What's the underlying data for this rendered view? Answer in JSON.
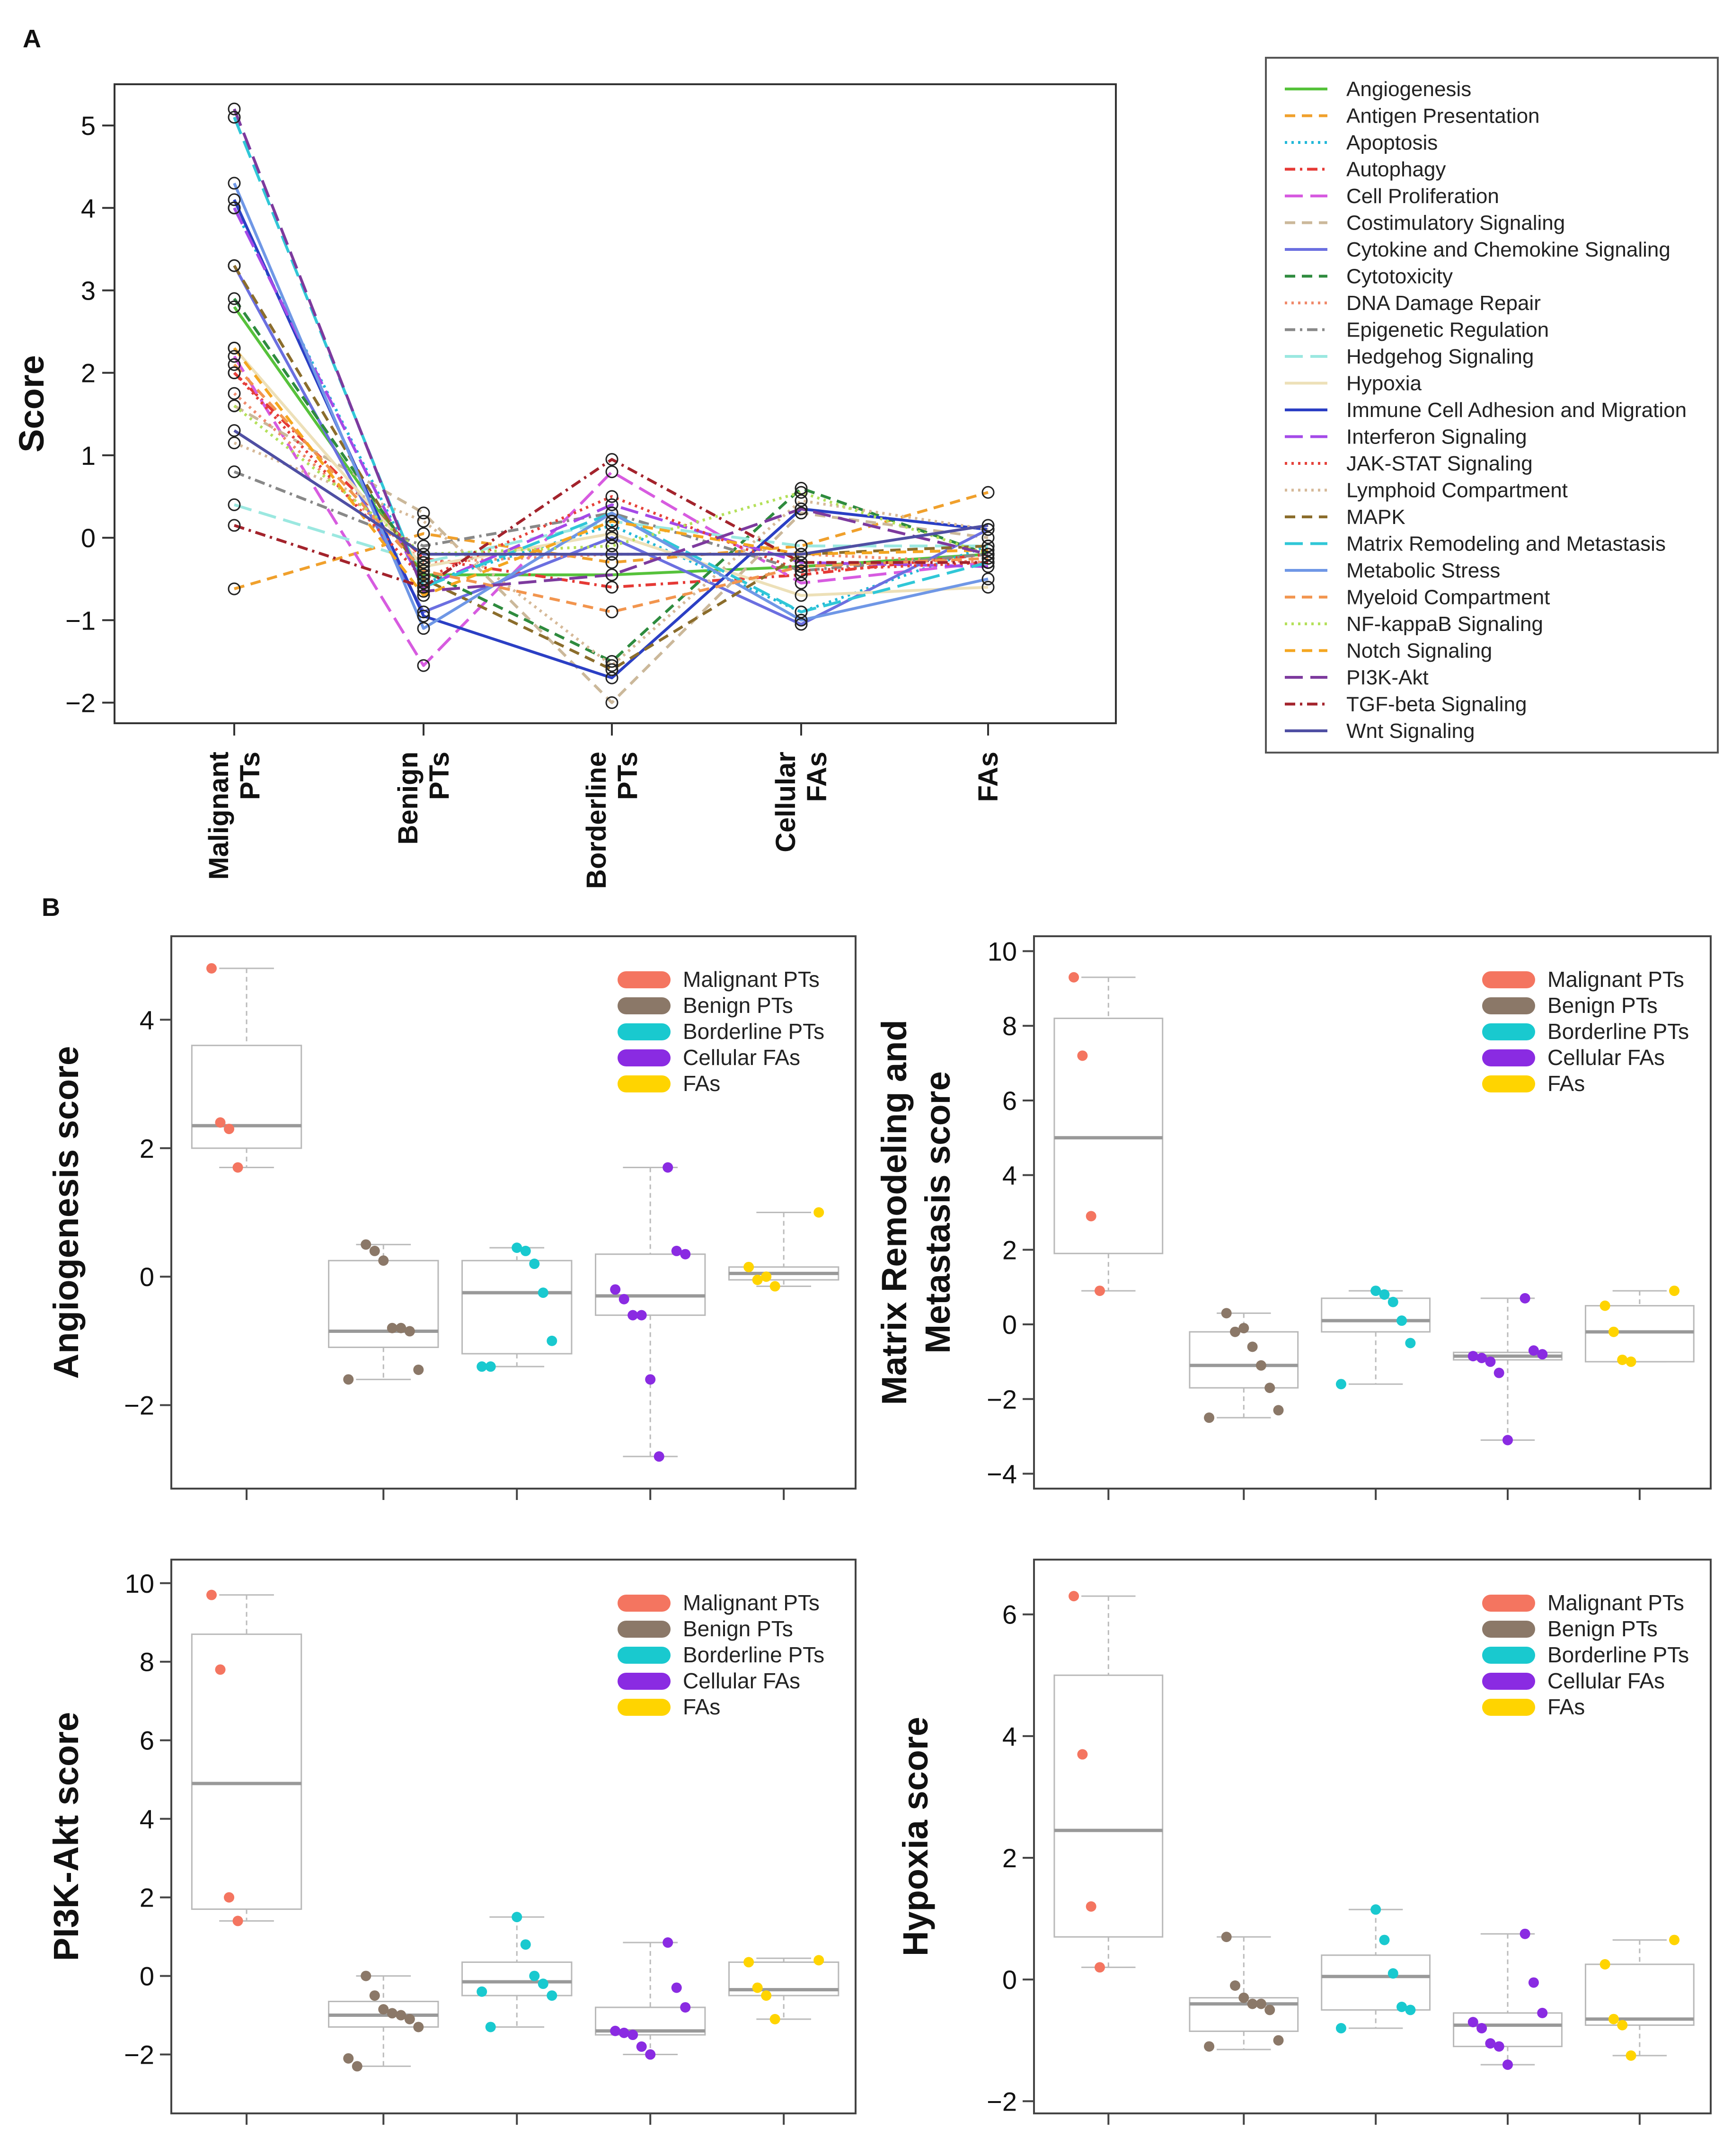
{
  "panel_labels": {
    "a": "A",
    "b": "B"
  },
  "colors": {
    "Malignant PTs": "#f47560",
    "Benign PTs": "#8b7868",
    "Borderline PTs": "#19c9cf",
    "Cellular FAs": "#8a2be2",
    "FAs": "#ffd400"
  },
  "chart_data": [
    {
      "id": "A",
      "type": "line",
      "title": "",
      "xlabel": "",
      "ylabel": "Score",
      "ylim": [
        -2.25,
        5.5
      ],
      "yticks": [
        "5",
        "4",
        "3",
        "2",
        "1",
        "0",
        "−1",
        "−2"
      ],
      "ytick_values": [
        5,
        4,
        3,
        2,
        1,
        0,
        -1,
        -2
      ],
      "categories": [
        [
          "Malignant",
          "PTs"
        ],
        [
          "Benign",
          "PTs"
        ],
        [
          "Borderline",
          "PTs"
        ],
        [
          "Cellular",
          "FAs"
        ],
        [
          "FAs"
        ]
      ],
      "series": [
        {
          "name": "Angiogenesis",
          "color": "#56c23b",
          "dash": "solid",
          "values": [
            2.8,
            -0.45,
            -0.45,
            -0.35,
            -0.2
          ]
        },
        {
          "name": "Antigen Presentation",
          "color": "#f0a02c",
          "dash": "dashed",
          "values": [
            -0.62,
            0.05,
            -0.3,
            -0.1,
            0.55
          ]
        },
        {
          "name": "Apoptosis",
          "color": "#22b8d8",
          "dash": "dotted",
          "values": [
            4.0,
            -0.55,
            0.15,
            -0.9,
            -0.1
          ]
        },
        {
          "name": "Autophagy",
          "color": "#e53935",
          "dash": "dashdot",
          "values": [
            2.0,
            -0.25,
            -0.6,
            -0.45,
            -0.2
          ]
        },
        {
          "name": "Cell Proliferation",
          "color": "#d75be0",
          "dash": "longdash",
          "values": [
            2.2,
            -1.55,
            0.8,
            -0.55,
            -0.3
          ]
        },
        {
          "name": "Costimulatory Signaling",
          "color": "#cbb89a",
          "dash": "dashed",
          "values": [
            1.6,
            0.3,
            -2.0,
            0.3,
            0.0
          ]
        },
        {
          "name": "Cytokine and Chemokine Signaling",
          "color": "#6b6fe0",
          "dash": "solid",
          "values": [
            3.3,
            -0.9,
            0.0,
            -1.05,
            0.1
          ]
        },
        {
          "name": "Cytotoxicity",
          "color": "#2e8b3e",
          "dash": "dashed",
          "values": [
            2.9,
            -0.4,
            -1.5,
            0.6,
            -0.2
          ]
        },
        {
          "name": "DNA Damage Repair",
          "color": "#f08a6c",
          "dash": "dotted",
          "values": [
            1.75,
            -0.3,
            -0.2,
            -0.2,
            -0.3
          ]
        },
        {
          "name": "Epigenetic Regulation",
          "color": "#888888",
          "dash": "dashdot",
          "values": [
            0.8,
            -0.1,
            0.3,
            -0.4,
            -0.2
          ]
        },
        {
          "name": "Hedgehog Signaling",
          "color": "#9be8e0",
          "dash": "longdash",
          "values": [
            0.4,
            -0.3,
            0.2,
            -0.1,
            -0.1
          ]
        },
        {
          "name": "Hypoxia",
          "color": "#ede0b8",
          "dash": "solid",
          "values": [
            2.3,
            -0.35,
            0.05,
            -0.7,
            -0.6
          ]
        },
        {
          "name": "Immune Cell Adhesion and Migration",
          "color": "#2b3fc4",
          "dash": "solid",
          "values": [
            4.1,
            -0.95,
            -1.7,
            0.35,
            0.1
          ]
        },
        {
          "name": "Interferon Signaling",
          "color": "#a44ae8",
          "dash": "longdash",
          "values": [
            4.0,
            -0.6,
            0.4,
            -0.3,
            -0.35
          ]
        },
        {
          "name": "JAK-STAT Signaling",
          "color": "#e5413a",
          "dash": "dotted",
          "values": [
            2.0,
            -0.5,
            0.5,
            -0.4,
            -0.3
          ]
        },
        {
          "name": "Lymphoid Compartment",
          "color": "#d6b998",
          "dash": "dotted",
          "values": [
            1.15,
            0.2,
            -1.55,
            0.45,
            0.1
          ]
        },
        {
          "name": "MAPK",
          "color": "#8b6d2c",
          "dash": "dashed",
          "values": [
            3.3,
            -0.5,
            -1.6,
            -0.2,
            -0.1
          ]
        },
        {
          "name": "Matrix Remodeling and Metastasis",
          "color": "#30c7d7",
          "dash": "longdash",
          "values": [
            5.1,
            -0.6,
            0.3,
            -0.9,
            -0.3
          ]
        },
        {
          "name": "Metabolic Stress",
          "color": "#6f97e6",
          "dash": "solid",
          "values": [
            4.3,
            -1.1,
            0.3,
            -1.0,
            -0.5
          ]
        },
        {
          "name": "Myeloid Compartment",
          "color": "#f2954e",
          "dash": "dashed",
          "values": [
            2.1,
            -0.4,
            -0.9,
            -0.35,
            -0.25
          ]
        },
        {
          "name": "NF-kappaB Signaling",
          "color": "#b4e05a",
          "dash": "dotted",
          "values": [
            1.6,
            -0.2,
            -0.1,
            0.55,
            -0.2
          ]
        },
        {
          "name": "Notch Signaling",
          "color": "#f4a620",
          "dash": "dashed",
          "values": [
            2.3,
            -0.7,
            0.2,
            -0.2,
            -0.15
          ]
        },
        {
          "name": "PI3K-Akt",
          "color": "#7d3a9e",
          "dash": "longdash",
          "values": [
            5.2,
            -0.65,
            -0.45,
            0.35,
            -0.2
          ]
        },
        {
          "name": "TGF-beta Signaling",
          "color": "#a3232c",
          "dash": "dashdot",
          "values": [
            0.15,
            -0.6,
            0.95,
            -0.3,
            -0.3
          ]
        },
        {
          "name": "Wnt Signaling",
          "color": "#4f4fa3",
          "dash": "solid",
          "values": [
            1.3,
            -0.2,
            -0.2,
            -0.2,
            0.15
          ]
        }
      ]
    },
    {
      "id": "B1",
      "type": "box",
      "ylabel": "Angiogenesis score",
      "ylim": [
        -3.3,
        5.3
      ],
      "yticks": [
        "4",
        "2",
        "0",
        "−2"
      ],
      "ytick_values": [
        4,
        2,
        0,
        -2
      ],
      "legend": [
        "Malignant PTs",
        "Benign PTs",
        "Borderline PTs",
        "Cellular FAs",
        "FAs"
      ],
      "groups": [
        {
          "name": "Malignant PTs",
          "box": {
            "low": 1.7,
            "q1": 2.0,
            "median": 2.35,
            "q3": 3.6,
            "high": 4.8
          },
          "points": [
            4.8,
            2.4,
            2.3,
            1.7
          ]
        },
        {
          "name": "Benign PTs",
          "box": {
            "low": -1.6,
            "q1": -1.1,
            "median": -0.85,
            "q3": 0.25,
            "high": 0.5
          },
          "points": [
            0.5,
            0.4,
            0.25,
            -0.8,
            -0.8,
            -0.85,
            -1.45,
            -1.6
          ]
        },
        {
          "name": "Borderline PTs",
          "box": {
            "low": -1.4,
            "q1": -1.2,
            "median": -0.25,
            "q3": 0.25,
            "high": 0.45
          },
          "points": [
            0.45,
            0.4,
            0.2,
            -0.25,
            -1.0,
            -1.4,
            -1.4
          ]
        },
        {
          "name": "Cellular FAs",
          "box": {
            "low": -2.8,
            "q1": -0.6,
            "median": -0.3,
            "q3": 0.35,
            "high": 1.7
          },
          "points": [
            1.7,
            0.4,
            0.35,
            -0.2,
            -0.35,
            -0.6,
            -0.6,
            -1.6,
            -2.8
          ]
        },
        {
          "name": "FAs",
          "box": {
            "low": -0.15,
            "q1": -0.05,
            "median": 0.05,
            "q3": 0.15,
            "high": 1.0
          },
          "points": [
            1.0,
            0.15,
            -0.05,
            0.0,
            -0.15
          ]
        }
      ]
    },
    {
      "id": "B2",
      "type": "box",
      "ylabel": "Matrix Remodeling and Metastasis score",
      "ylabel_lines": [
        "Matrix Remodeling and",
        "Metastasis score"
      ],
      "ylim": [
        -4.4,
        10.4
      ],
      "yticks": [
        "10",
        "8",
        "6",
        "4",
        "2",
        "0",
        "−2",
        "−4"
      ],
      "ytick_values": [
        10,
        8,
        6,
        4,
        2,
        0,
        -2,
        -4
      ],
      "legend": [
        "Malignant PTs",
        "Benign PTs",
        "Borderline PTs",
        "Cellular FAs",
        "FAs"
      ],
      "groups": [
        {
          "name": "Malignant PTs",
          "box": {
            "low": 0.9,
            "q1": 1.9,
            "median": 5.0,
            "q3": 8.2,
            "high": 9.3
          },
          "points": [
            9.3,
            7.2,
            2.9,
            0.9
          ]
        },
        {
          "name": "Benign PTs",
          "box": {
            "low": -2.5,
            "q1": -1.7,
            "median": -1.1,
            "q3": -0.2,
            "high": 0.3
          },
          "points": [
            0.3,
            -0.2,
            -0.1,
            -0.6,
            -1.1,
            -1.7,
            -2.3,
            -2.5
          ]
        },
        {
          "name": "Borderline PTs",
          "box": {
            "low": -1.6,
            "q1": -0.2,
            "median": 0.1,
            "q3": 0.7,
            "high": 0.9
          },
          "points": [
            0.9,
            0.8,
            0.6,
            0.1,
            -0.5,
            -1.6
          ]
        },
        {
          "name": "Cellular FAs",
          "box": {
            "low": -3.1,
            "q1": -0.95,
            "median": -0.85,
            "q3": -0.75,
            "high": 0.7
          },
          "points": [
            0.7,
            -0.7,
            -0.8,
            -0.85,
            -0.9,
            -1.0,
            -1.3,
            -3.1
          ]
        },
        {
          "name": "FAs",
          "box": {
            "low": -1.0,
            "q1": -1.0,
            "median": -0.2,
            "q3": 0.5,
            "high": 0.9
          },
          "points": [
            0.9,
            0.5,
            -0.2,
            -0.95,
            -1.0
          ]
        }
      ]
    },
    {
      "id": "B3",
      "type": "box",
      "ylabel": "PI3K-Akt score",
      "ylim": [
        -3.5,
        10.6
      ],
      "yticks": [
        "10",
        "8",
        "6",
        "4",
        "2",
        "0",
        "−2"
      ],
      "ytick_values": [
        10,
        8,
        6,
        4,
        2,
        0,
        -2
      ],
      "legend": [
        "Malignant PTs",
        "Benign PTs",
        "Borderline PTs",
        "Cellular FAs",
        "FAs"
      ],
      "groups": [
        {
          "name": "Malignant PTs",
          "box": {
            "low": 1.4,
            "q1": 1.7,
            "median": 4.9,
            "q3": 8.7,
            "high": 9.7
          },
          "points": [
            9.7,
            7.8,
            2.0,
            1.4
          ]
        },
        {
          "name": "Benign PTs",
          "box": {
            "low": -2.3,
            "q1": -1.3,
            "median": -1.0,
            "q3": -0.65,
            "high": 0.0
          },
          "points": [
            0.0,
            -0.5,
            -0.85,
            -0.95,
            -1.0,
            -1.1,
            -1.3,
            -2.1,
            -2.3
          ]
        },
        {
          "name": "Borderline PTs",
          "box": {
            "low": -1.3,
            "q1": -0.5,
            "median": -0.15,
            "q3": 0.35,
            "high": 1.5
          },
          "points": [
            1.5,
            0.8,
            0.0,
            -0.2,
            -0.5,
            -0.4,
            -1.3
          ]
        },
        {
          "name": "Cellular FAs",
          "box": {
            "low": -2.0,
            "q1": -1.5,
            "median": -1.4,
            "q3": -0.8,
            "high": 0.85
          },
          "points": [
            0.85,
            -0.3,
            -0.8,
            -1.4,
            -1.45,
            -1.5,
            -1.8,
            -2.0
          ]
        },
        {
          "name": "FAs",
          "box": {
            "low": -1.1,
            "q1": -0.5,
            "median": -0.35,
            "q3": 0.35,
            "high": 0.45
          },
          "points": [
            0.4,
            0.35,
            -0.3,
            -0.5,
            -1.1
          ]
        }
      ]
    },
    {
      "id": "B4",
      "type": "box",
      "ylabel": "Hypoxia score",
      "ylim": [
        -2.2,
        6.9
      ],
      "yticks": [
        "6",
        "4",
        "2",
        "0",
        "−2"
      ],
      "ytick_values": [
        6,
        4,
        2,
        0,
        -2
      ],
      "legend": [
        "Malignant PTs",
        "Benign PTs",
        "Borderline PTs",
        "Cellular FAs",
        "FAs"
      ],
      "groups": [
        {
          "name": "Malignant PTs",
          "box": {
            "low": 0.2,
            "q1": 0.7,
            "median": 2.45,
            "q3": 5.0,
            "high": 6.3
          },
          "points": [
            6.3,
            3.7,
            1.2,
            0.2
          ]
        },
        {
          "name": "Benign PTs",
          "box": {
            "low": -1.15,
            "q1": -0.85,
            "median": -0.4,
            "q3": -0.3,
            "high": 0.7
          },
          "points": [
            0.7,
            -0.1,
            -0.3,
            -0.4,
            -0.4,
            -0.5,
            -1.0,
            -1.1
          ]
        },
        {
          "name": "Borderline PTs",
          "box": {
            "low": -0.8,
            "q1": -0.5,
            "median": 0.05,
            "q3": 0.4,
            "high": 1.15
          },
          "points": [
            1.15,
            0.65,
            0.1,
            -0.45,
            -0.5,
            -0.8
          ]
        },
        {
          "name": "Cellular FAs",
          "box": {
            "low": -1.4,
            "q1": -1.1,
            "median": -0.75,
            "q3": -0.55,
            "high": 0.75
          },
          "points": [
            0.75,
            -0.05,
            -0.55,
            -0.7,
            -0.8,
            -1.05,
            -1.1,
            -1.4
          ]
        },
        {
          "name": "FAs",
          "box": {
            "low": -1.25,
            "q1": -0.75,
            "median": -0.65,
            "q3": 0.25,
            "high": 0.65
          },
          "points": [
            0.65,
            0.25,
            -0.65,
            -0.75,
            -1.25
          ]
        }
      ]
    }
  ]
}
